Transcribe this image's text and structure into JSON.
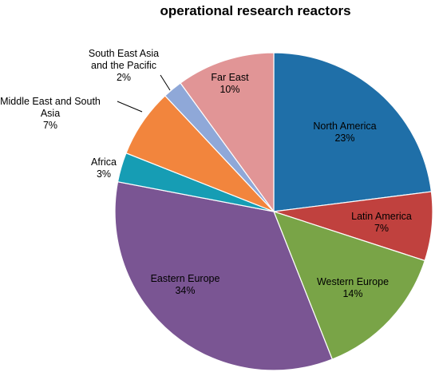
{
  "chart_data": {
    "type": "pie",
    "title": "operational research reactors",
    "slices": [
      {
        "label": [
          "North America"
        ],
        "value_label": "23%",
        "value": 23,
        "color": "#1f6fa8"
      },
      {
        "label": [
          "Latin America"
        ],
        "value_label": "7%",
        "value": 7,
        "color": "#c0413e"
      },
      {
        "label": [
          "Western Europe"
        ],
        "value_label": "14%",
        "value": 14,
        "color": "#79a447"
      },
      {
        "label": [
          "Eastern Europe"
        ],
        "value_label": "34%",
        "value": 34,
        "color": "#7a5593"
      },
      {
        "label": [
          "Africa"
        ],
        "value_label": "3%",
        "value": 3,
        "color": "#169db4"
      },
      {
        "label": [
          "Middle East and South",
          "Asia"
        ],
        "value_label": "7%",
        "value": 7,
        "color": "#f2853d"
      },
      {
        "label": [
          "South East Asia",
          "and the Pacific"
        ],
        "value_label": "2%",
        "value": 2,
        "color": "#8fa8d8"
      },
      {
        "label": [
          "Far East"
        ],
        "value_label": "10%",
        "value": 10,
        "color": "#e19596"
      }
    ]
  }
}
